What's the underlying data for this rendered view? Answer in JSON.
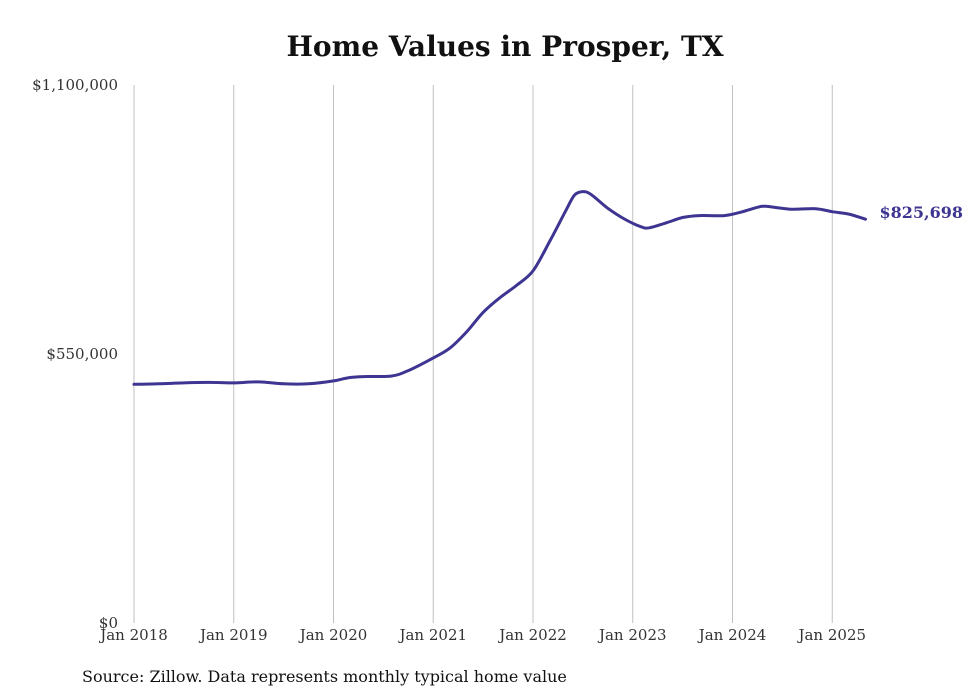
{
  "title": "Home Values in Prosper, TX",
  "source": "Source: Zillow. Data represents monthly typical home value",
  "colors": {
    "line": "#3d3591",
    "grid": "#c0c0c0",
    "text": "#333333"
  },
  "chart_data": {
    "type": "line",
    "title": "Home Values in Prosper, TX",
    "xlabel": "",
    "ylabel": "",
    "ylim": [
      0,
      1100000
    ],
    "y_ticks": [
      {
        "value": 0,
        "label": "$0"
      },
      {
        "value": 550000,
        "label": "$550,000"
      },
      {
        "value": 1100000,
        "label": "$1,100,000"
      }
    ],
    "x_ticks": [
      {
        "date": "2018-01",
        "label": "Jan 2018"
      },
      {
        "date": "2019-01",
        "label": "Jan 2019"
      },
      {
        "date": "2020-01",
        "label": "Jan 2020"
      },
      {
        "date": "2021-01",
        "label": "Jan 2021"
      },
      {
        "date": "2022-01",
        "label": "Jan 2022"
      },
      {
        "date": "2023-01",
        "label": "Jan 2023"
      },
      {
        "date": "2024-01",
        "label": "Jan 2024"
      },
      {
        "date": "2025-01",
        "label": "Jan 2025"
      }
    ],
    "vertical_grid": true,
    "end_label": "$825,698",
    "series": [
      {
        "points": [
          [
            "2018-01",
            488000
          ],
          [
            "2018-04",
            489000
          ],
          [
            "2018-07",
            491000
          ],
          [
            "2018-10",
            492000
          ],
          [
            "2019-01",
            491000
          ],
          [
            "2019-04",
            493000
          ],
          [
            "2019-07",
            489000
          ],
          [
            "2019-10",
            489000
          ],
          [
            "2020-01",
            495000
          ],
          [
            "2020-03",
            502000
          ],
          [
            "2020-05",
            504000
          ],
          [
            "2020-08",
            505000
          ],
          [
            "2020-10",
            516000
          ],
          [
            "2021-01",
            542000
          ],
          [
            "2021-03",
            562000
          ],
          [
            "2021-05",
            595000
          ],
          [
            "2021-07",
            635000
          ],
          [
            "2021-09",
            665000
          ],
          [
            "2021-11",
            690000
          ],
          [
            "2022-01",
            720000
          ],
          [
            "2022-03",
            780000
          ],
          [
            "2022-05",
            845000
          ],
          [
            "2022-06",
            875000
          ],
          [
            "2022-07",
            882000
          ],
          [
            "2022-08",
            876000
          ],
          [
            "2022-10",
            848000
          ],
          [
            "2022-12",
            826000
          ],
          [
            "2023-02",
            810000
          ],
          [
            "2023-03",
            808000
          ],
          [
            "2023-05",
            818000
          ],
          [
            "2023-07",
            829000
          ],
          [
            "2023-09",
            833000
          ],
          [
            "2023-12",
            833000
          ],
          [
            "2024-02",
            840000
          ],
          [
            "2024-04",
            850000
          ],
          [
            "2024-05",
            852000
          ],
          [
            "2024-08",
            846000
          ],
          [
            "2024-11",
            847000
          ],
          [
            "2025-01",
            841000
          ],
          [
            "2025-03",
            836000
          ],
          [
            "2025-05",
            825698
          ]
        ]
      }
    ]
  }
}
